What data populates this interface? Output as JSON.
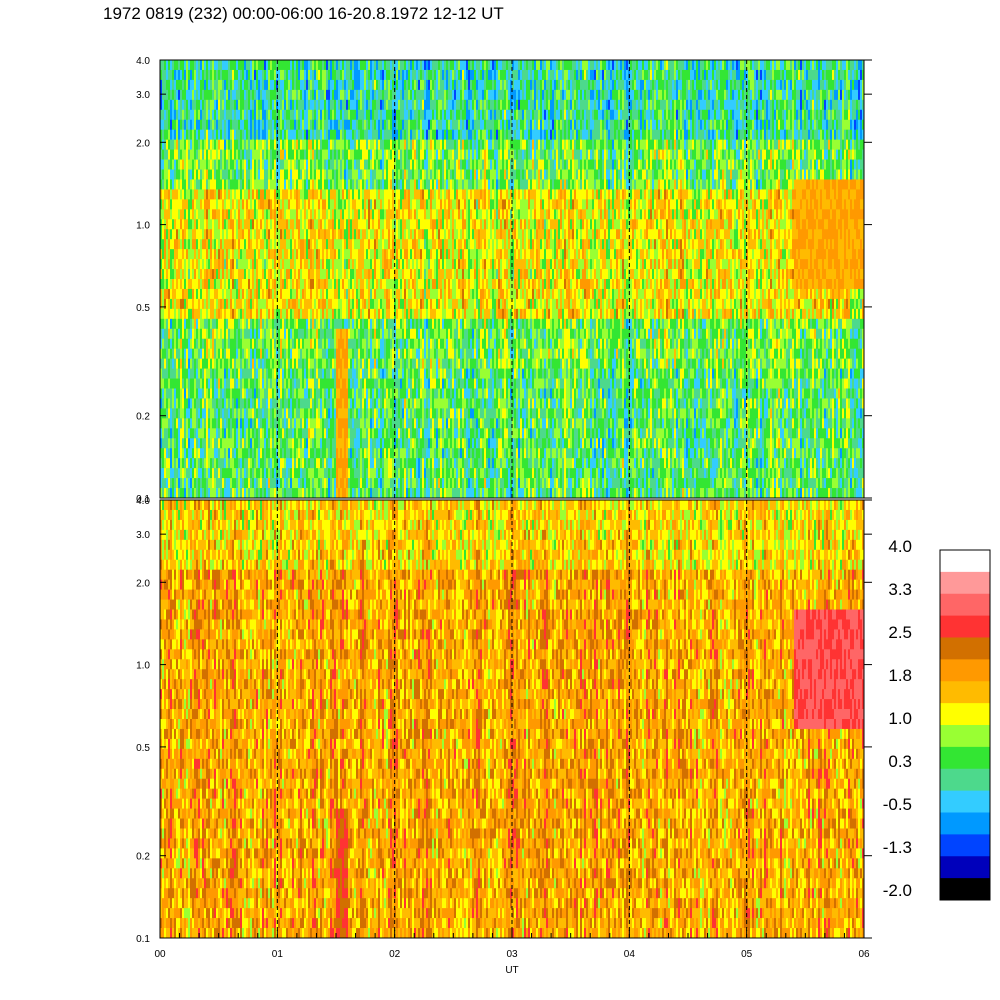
{
  "title": "1972 0819 (232) 00:00-06:00 16-20.8.1972  12-12 UT",
  "chart_data": {
    "type": "heatmap",
    "xlabel": "UT",
    "x_tick_labels": [
      "00",
      "01",
      "02",
      "03",
      "04",
      "05",
      "06"
    ],
    "xlim": [
      0,
      6
    ],
    "y_scale": "log",
    "ylim": [
      0.1,
      4.0
    ],
    "y_tick_labels": [
      "4.0",
      "3.0",
      "2.0",
      "1.0",
      "0.5",
      "0.2",
      "0.1"
    ],
    "y_tick_values": [
      4.0,
      3.0,
      2.0,
      1.0,
      0.5,
      0.2,
      0.1
    ],
    "hour_markers": [
      1,
      2,
      3,
      4,
      5
    ],
    "panels": [
      {
        "name": "upper",
        "dominant_range": [
          -0.5,
          1.8
        ],
        "features": [
          {
            "t_start": 1.5,
            "t_end": 1.6,
            "f_start": 0.1,
            "f_end": 0.4,
            "level": 1.8
          },
          {
            "t_start": 5.4,
            "t_end": 6.0,
            "f_start": 0.6,
            "f_end": 1.5,
            "level": 1.8
          }
        ]
      },
      {
        "name": "lower",
        "dominant_range": [
          1.0,
          2.5
        ],
        "features": [
          {
            "t_start": 1.5,
            "t_end": 1.6,
            "f_start": 0.1,
            "f_end": 0.3,
            "level": 2.5
          },
          {
            "t_start": 5.4,
            "t_end": 6.0,
            "f_start": 0.6,
            "f_end": 1.6,
            "level": 2.9
          }
        ]
      }
    ],
    "colorbar": {
      "labels": [
        "4.0",
        "3.3",
        "2.5",
        "1.8",
        "1.0",
        "0.3",
        "-0.5",
        "-1.3",
        "-2.0"
      ],
      "colors": [
        "#ffffff",
        "#ff9999",
        "#ff6666",
        "#ff3333",
        "#d27000",
        "#ff9900",
        "#ffbb00",
        "#ffff00",
        "#99ff33",
        "#33e633",
        "#4dd98c",
        "#33ccff",
        "#0099ff",
        "#0044ff",
        "#0000bb",
        "#000000"
      ]
    }
  }
}
